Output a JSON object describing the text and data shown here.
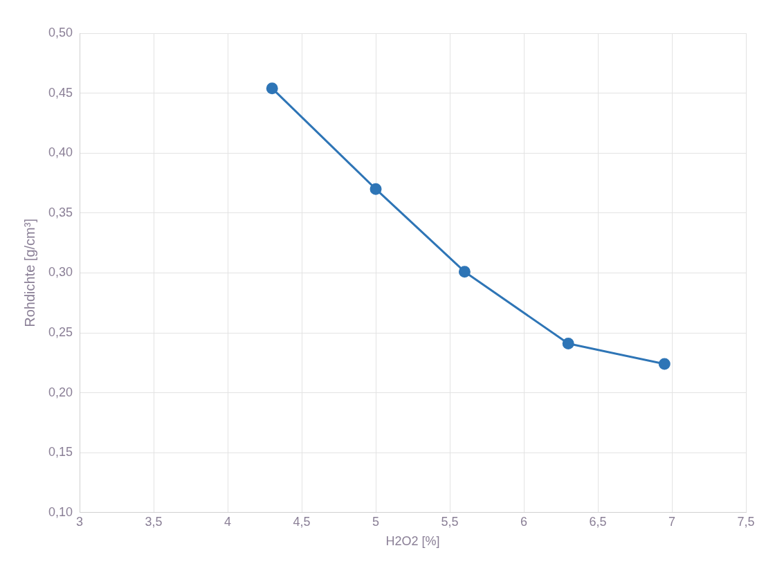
{
  "chart_data": {
    "type": "line",
    "xlabel": "H2O2 [%]",
    "ylabel": "Rohdichte [g/cm³]",
    "x": [
      4.3,
      5.0,
      5.6,
      6.3,
      6.95
    ],
    "series": [
      {
        "color": "#2e75b6",
        "values": [
          0.454,
          0.37,
          0.301,
          0.241,
          0.224
        ]
      }
    ],
    "xlim": [
      3,
      7.5
    ],
    "xticks": [
      3,
      {
        "value": 3.5,
        "label": "3,5"
      },
      4,
      {
        "value": 4.5,
        "label": "4,5"
      },
      5,
      {
        "value": 5.5,
        "label": "5,5"
      },
      6,
      {
        "value": 6.5,
        "label": "6,5"
      },
      7,
      {
        "value": 7.5,
        "label": "7,5"
      }
    ],
    "ylim": [
      0.1,
      0.5
    ],
    "yticks": [
      {
        "value": 0.1,
        "label": "0,10"
      },
      {
        "value": 0.15,
        "label": "0,15"
      },
      {
        "value": 0.2,
        "label": "0,20"
      },
      {
        "value": 0.25,
        "label": "0,25"
      },
      {
        "value": 0.3,
        "label": "0,30"
      },
      {
        "value": 0.35,
        "label": "0,35"
      },
      {
        "value": 0.4,
        "label": "0,40"
      },
      {
        "value": 0.45,
        "label": "0,45"
      },
      {
        "value": 0.5,
        "label": "0,50"
      }
    ],
    "grid": true,
    "legend": false,
    "marker": "circle",
    "line_style": "solid"
  }
}
